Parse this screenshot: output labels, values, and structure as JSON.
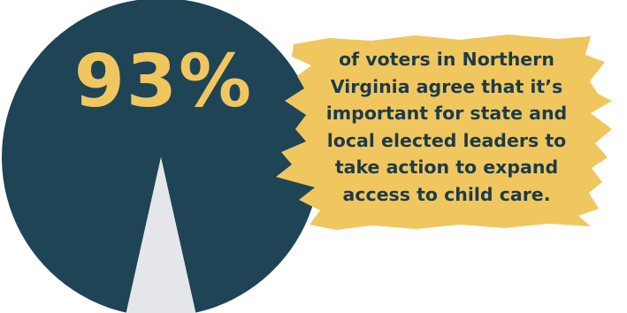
{
  "chart_data": {
    "type": "pie",
    "slices": [
      {
        "value": 93,
        "color": "#1e4456"
      },
      {
        "value": 7,
        "color": "#e5e6e9"
      }
    ],
    "big_label": "93%",
    "big_label_color": "#f0c75e"
  },
  "caption": {
    "lines": [
      "of voters in  Northern",
      "Virginia agree that it’s",
      "important for state and",
      "local elected leaders to",
      "take action to expand",
      "access to child care."
    ],
    "color": "#1e3a4a",
    "highlight_color": "#f0c75e"
  }
}
